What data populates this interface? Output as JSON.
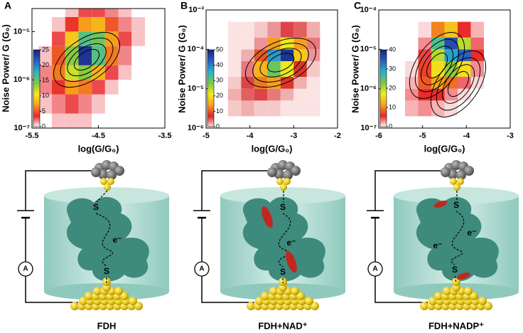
{
  "chart_data": [
    {
      "type": "heatmap",
      "panel_label": "A",
      "xlabel": "log(G/G₀)",
      "ylabel": "Noise Power/ G (G₀)",
      "xlim": [
        -5.5,
        -3.5
      ],
      "xticks": [
        -5.5,
        -4.5,
        -3.5
      ],
      "ylim": [
        1e-07,
        3e-05
      ],
      "yscale": "log",
      "yticks": [
        {
          "value": 1e-07,
          "label": "10⁻⁷"
        },
        {
          "value": 1e-06,
          "label": "10⁻⁶"
        },
        {
          "value": 1e-05,
          "label": "10⁻⁵"
        }
      ],
      "xbins": [
        -5.4,
        -5.2,
        -5.0,
        -4.8,
        -4.6,
        -4.4,
        -4.2,
        -4.0,
        -3.8
      ],
      "ybins": [
        1e-07,
        2e-07,
        5e-07,
        1e-06,
        2e-06,
        5e-06,
        1e-05,
        2e-05,
        3e-05
      ],
      "counts": [
        [
          0,
          1,
          1,
          1,
          0,
          0,
          0,
          0
        ],
        [
          1,
          2,
          3,
          2,
          1,
          0,
          0,
          0
        ],
        [
          2,
          4,
          7,
          6,
          3,
          1,
          0,
          0
        ],
        [
          2,
          6,
          12,
          14,
          8,
          3,
          1,
          0
        ],
        [
          1,
          5,
          14,
          24,
          16,
          6,
          2,
          0
        ],
        [
          0,
          3,
          9,
          16,
          15,
          7,
          3,
          1
        ],
        [
          0,
          1,
          4,
          7,
          8,
          5,
          2,
          1
        ],
        [
          0,
          0,
          1,
          3,
          3,
          2,
          1,
          0
        ]
      ],
      "zlim": [
        0,
        25
      ],
      "zticks": [
        0,
        5,
        10,
        15,
        20,
        25
      ],
      "colormap": [
        "#ffffff",
        "#e8262b",
        "#f7a21b",
        "#f5ec1c",
        "#7dc843",
        "#2bb5c8",
        "#2a5fc2",
        "#1a237e"
      ]
    },
    {
      "type": "heatmap",
      "panel_label": "B",
      "xlabel": "log(G/G₀)",
      "ylabel": "Noise Power/ G (G₀)",
      "xlim": [
        -5,
        -2
      ],
      "xticks": [
        -5,
        -4,
        -3,
        -2
      ],
      "ylim": [
        1e-06,
        0.001
      ],
      "yscale": "log",
      "yticks": [
        {
          "value": 1e-06,
          "label": "10⁻⁶"
        },
        {
          "value": 1e-05,
          "label": "10⁻⁵"
        },
        {
          "value": 0.0001,
          "label": "10⁻⁴"
        },
        {
          "value": 0.001,
          "label": "10⁻³"
        }
      ],
      "xbins": [
        -4.5,
        -4.2,
        -3.9,
        -3.6,
        -3.3,
        -3.0,
        -2.7,
        -2.4
      ],
      "ybins": [
        2e-06,
        5e-06,
        1e-05,
        2e-05,
        5e-05,
        0.0001,
        0.0002,
        0.0005
      ],
      "counts": [
        [
          1,
          2,
          1,
          1,
          0,
          0,
          0
        ],
        [
          2,
          5,
          6,
          4,
          2,
          0,
          0
        ],
        [
          1,
          6,
          12,
          14,
          8,
          2,
          0
        ],
        [
          0,
          4,
          16,
          30,
          22,
          8,
          1
        ],
        [
          0,
          2,
          10,
          38,
          48,
          18,
          3
        ],
        [
          0,
          0,
          3,
          14,
          22,
          14,
          4
        ],
        [
          0,
          0,
          1,
          3,
          6,
          5,
          2
        ]
      ],
      "zlim": [
        0,
        50
      ],
      "zticks": [
        0,
        10,
        20,
        30,
        40,
        50
      ],
      "colormap": [
        "#fbe3e3",
        "#d7262b",
        "#f7a21b",
        "#f5ec1c",
        "#7dc843",
        "#2bb5c8",
        "#2a5fc2",
        "#1a237e"
      ]
    },
    {
      "type": "heatmap",
      "panel_label": "C",
      "xlabel": "log(G/G₀)",
      "ylabel": "Noise Power/ G (G₀)",
      "xlim": [
        -6,
        -3
      ],
      "xticks": [
        -6,
        -5,
        -4,
        -3
      ],
      "ylim": [
        1e-07,
        0.0001
      ],
      "yscale": "log",
      "yticks": [
        {
          "value": 1e-07,
          "label": "10⁻⁷"
        },
        {
          "value": 1e-06,
          "label": "10⁻⁶"
        },
        {
          "value": 1e-05,
          "label": "10⁻⁵"
        },
        {
          "value": 0.0001,
          "label": "10⁻⁴"
        }
      ],
      "xbins": [
        -5.4,
        -5.1,
        -4.8,
        -4.5,
        -4.2,
        -3.9,
        -3.6
      ],
      "ybins": [
        2e-07,
        5e-07,
        1e-06,
        2e-06,
        5e-06,
        1e-05,
        2e-05,
        5e-05
      ],
      "counts": [
        [
          2,
          3,
          2,
          1,
          0,
          0
        ],
        [
          3,
          6,
          6,
          3,
          1,
          0
        ],
        [
          2,
          8,
          12,
          9,
          4,
          1
        ],
        [
          1,
          7,
          16,
          22,
          16,
          3
        ],
        [
          0,
          5,
          20,
          30,
          34,
          6
        ],
        [
          0,
          3,
          26,
          36,
          20,
          4
        ],
        [
          0,
          1,
          10,
          14,
          6,
          2
        ]
      ],
      "zlim": [
        0,
        40
      ],
      "zticks": [
        0,
        10,
        20,
        30,
        40
      ],
      "colormap": [
        "#ffffff",
        "#e8262b",
        "#f7a21b",
        "#f5ec1c",
        "#7dc843",
        "#2bb5c8",
        "#2a5fc2",
        "#1a237e"
      ]
    }
  ],
  "diagrams": [
    {
      "caption": "FDH",
      "labels": [
        "S",
        "S",
        "e⁻",
        "A"
      ]
    },
    {
      "caption": "FDH+NAD⁺",
      "labels": [
        "S",
        "S",
        "e⁻",
        "A"
      ]
    },
    {
      "caption": "FDH+NADP⁺",
      "labels": [
        "S",
        "S",
        "e⁻",
        "e⁻",
        "A"
      ]
    }
  ]
}
